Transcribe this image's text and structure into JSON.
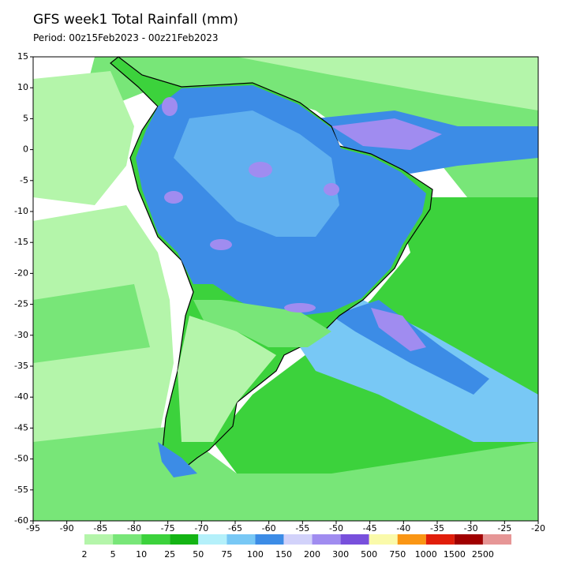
{
  "header": {
    "title": "GFS week1 Total Rainfall (mm)",
    "period": "Period: 00z15Feb2023 - 00z21Feb2023"
  },
  "map": {
    "lon_ticks": [
      -95,
      -90,
      -85,
      -80,
      -75,
      -70,
      -65,
      -60,
      -55,
      -50,
      -45,
      -40,
      -35,
      -30,
      -25,
      -20
    ],
    "lat_ticks": [
      15,
      10,
      5,
      0,
      -5,
      -10,
      -15,
      -20,
      -25,
      -30,
      -35,
      -40,
      -45,
      -50,
      -55,
      -60
    ],
    "lonlim": [
      -95,
      -20
    ],
    "latlim": [
      -60,
      15
    ]
  },
  "colorbar": {
    "levels": [
      2,
      5,
      10,
      25,
      50,
      75,
      100,
      150,
      200,
      300,
      500,
      750,
      1000,
      1500,
      2500
    ],
    "colors": [
      "#b4f5aa",
      "#78e678",
      "#3cd23c",
      "#14b414",
      "#b4f0fa",
      "#78c8f5",
      "#3c8ce6",
      "#d2d2fa",
      "#a08cf0",
      "#7850dc",
      "#fafaaa",
      "#fa9614",
      "#e11e0a",
      "#a00000",
      "#e69696"
    ],
    "last_color": "#fadcdc"
  }
}
